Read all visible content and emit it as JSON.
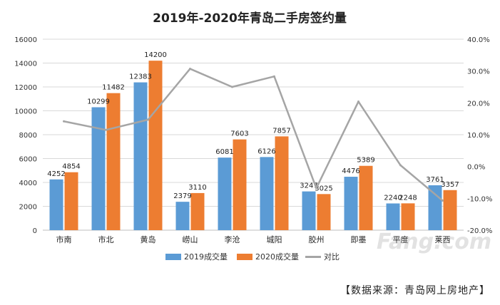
{
  "watermark": "Fang.com",
  "source_note": "【数据来源：青岛网上房地产】",
  "chart_data": {
    "type": "bar",
    "title": "2019年-2020年青岛二手房签约量",
    "categories": [
      "市南",
      "市北",
      "黄岛",
      "崂山",
      "李沧",
      "城阳",
      "胶州",
      "即墨",
      "平度",
      "莱西"
    ],
    "series": [
      {
        "name": "2019成交量",
        "type": "bar",
        "axis": "left",
        "color": "#5b9bd5",
        "values": [
          4252,
          10299,
          12383,
          2379,
          6081,
          6126,
          3247,
          4476,
          2240,
          3761
        ],
        "labels": [
          "4252",
          "10299",
          "12383",
          "2379",
          "6081",
          "6126",
          "3247",
          "4476",
          "2240",
          "3761"
        ]
      },
      {
        "name": "2020成交量",
        "type": "bar",
        "axis": "right",
        "color": "#ed7d31",
        "values": [
          4854,
          11482,
          14200,
          3110,
          7603,
          7857,
          3025,
          5389,
          2248,
          3357
        ],
        "labels": [
          "4854",
          "11482",
          "14200",
          "3110",
          "7603",
          "7857",
          "3025",
          "5389",
          "2248",
          "3357"
        ]
      },
      {
        "name": "对比",
        "type": "line",
        "axis": "right",
        "color": "#a5a5a5",
        "values": [
          14.2,
          11.5,
          14.7,
          30.7,
          25.0,
          28.3,
          -6.8,
          20.4,
          0.4,
          -10.7
        ]
      }
    ],
    "y_left": {
      "min": 0,
      "max": 16000,
      "ticks": [
        "0",
        "2000",
        "4000",
        "6000",
        "8000",
        "10000",
        "12000",
        "14000",
        "16000"
      ]
    },
    "y_right": {
      "min": -20,
      "max": 40,
      "ticks": [
        "-20.0%",
        "-10.0%",
        "0.0%",
        "10.0%",
        "20.0%",
        "30.0%",
        "40.0%"
      ]
    },
    "legend_position": "bottom",
    "grid": true
  }
}
